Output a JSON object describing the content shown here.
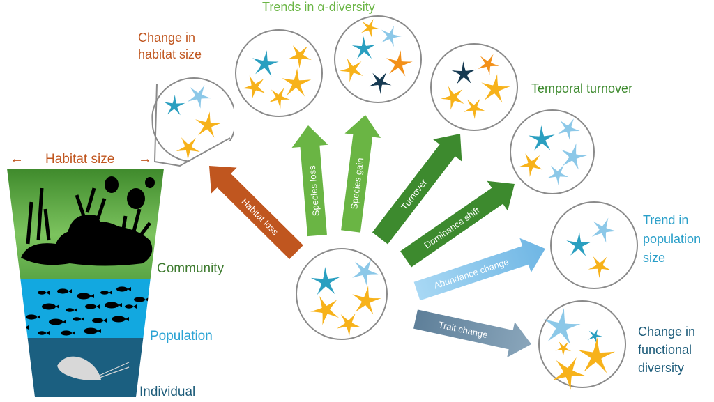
{
  "colors": {
    "brown": "#c0561f",
    "light_green": "#6ab544",
    "dark_green": "#3d8a2e",
    "light_blue_arrow": "#8cc8ec",
    "grey_blue_arrow": "#6f8fa8",
    "population_text": "#2a9fc9",
    "functional_text": "#1d5c7a",
    "star_yellow": "#f7b21a",
    "star_teal": "#2a9fc0",
    "star_lightblue": "#8cc8e8",
    "star_orange": "#f39019",
    "star_navy": "#163a52"
  },
  "titles": {
    "alpha_diversity": "Trends in α-diversity",
    "habitat_change": [
      "Change in",
      "habitat size"
    ],
    "temporal_turnover": "Temporal turnover",
    "population_trend": [
      "Trend in",
      "population",
      "size"
    ],
    "functional_change": [
      "Change in",
      "functional",
      "diversity"
    ]
  },
  "arrows": {
    "habitat_loss": "Habitat loss",
    "species_loss": "Species loss",
    "species_gain": "Species gain",
    "turnover": "Turnover",
    "dominance_shift": "Dominance shift",
    "abundance_change": "Abundance change",
    "trait_change": "Trait change"
  },
  "scale_panel": {
    "habitat_size": "Habitat size",
    "community": "Community",
    "population": "Population",
    "individual": "Individual"
  }
}
